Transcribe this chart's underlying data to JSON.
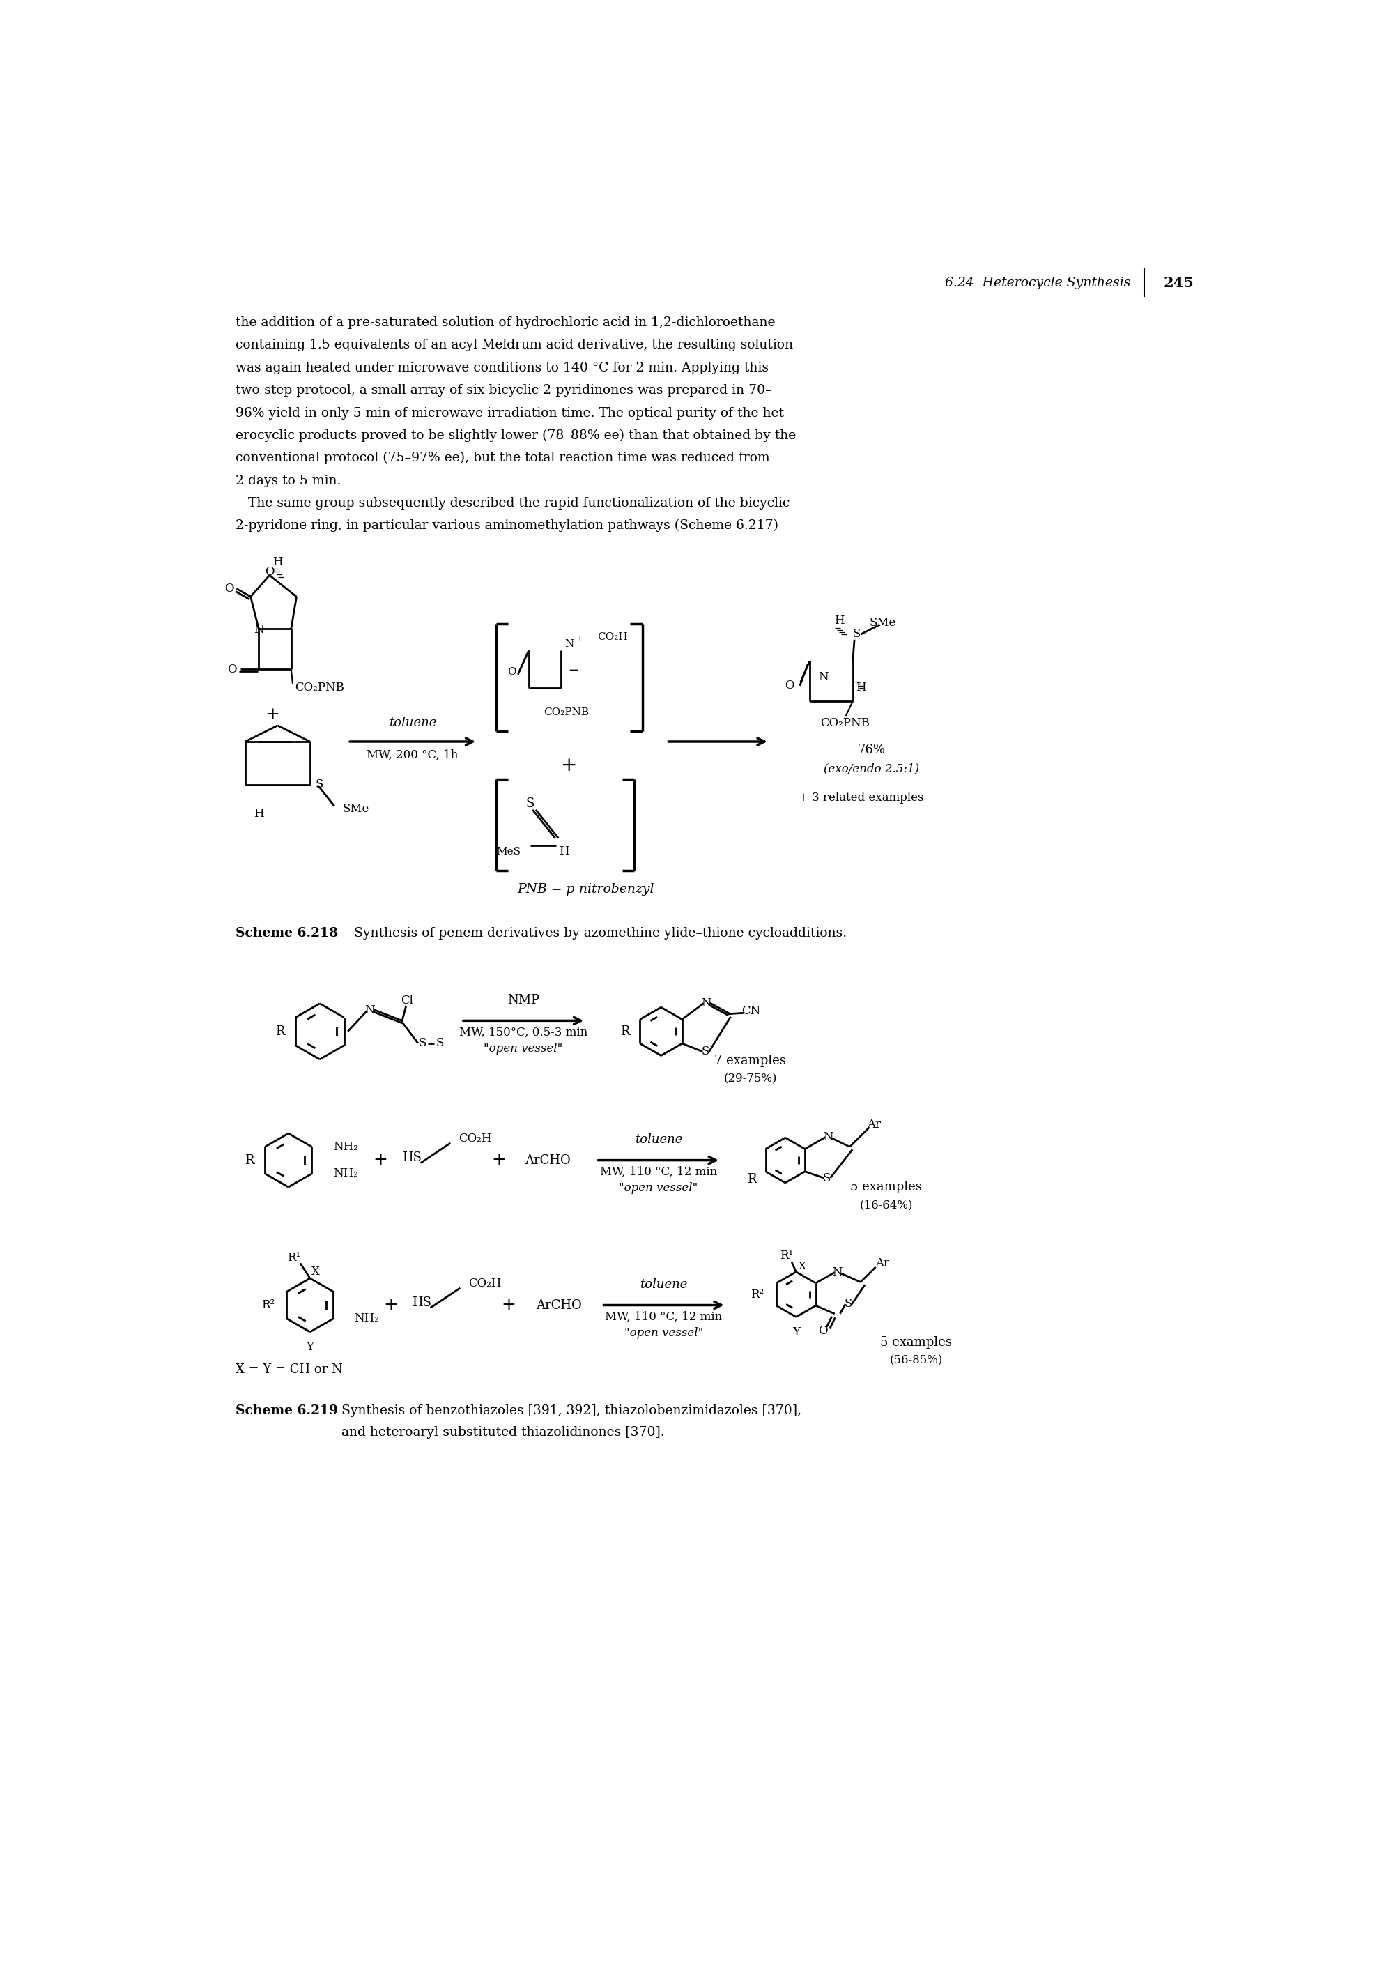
{
  "background_color": "#ffffff",
  "page_header": "6.24  Heterocycle Synthesis",
  "page_number": "245",
  "body_text_lines": [
    "the addition of a pre-saturated solution of hydrochloric acid in 1,2-dichloroethane",
    "containing 1.5 equivalents of an acyl Meldrum acid derivative, the resulting solution",
    "was again heated under microwave conditions to 140 °C for 2 min. Applying this",
    "two-step protocol, a small array of six bicyclic 2-pyridinones was prepared in 70–",
    "96% yield in only 5 min of microwave irradiation time. The optical purity of the het-",
    "erocyclic products proved to be slightly lower (78–88% ee) than that obtained by the",
    "conventional protocol (75–97% ee), but the total reaction time was reduced from",
    "2 days to 5 min.",
    "   The same group subsequently described the rapid functionalization of the bicyclic",
    "2-pyridone ring, in particular various aminomethylation pathways (Scheme 6.217)"
  ],
  "scheme218_label": "Scheme 6.218",
  "scheme218_caption": "   Synthesis of penem derivatives by azomethine ylide–thione cycloadditions.",
  "scheme219_label": "Scheme 6.219",
  "scheme219_caption": "   Synthesis of benzothiazoles [391, 392], thiazolobenzimidazoles [370],\nand heteroaryl-substituted thiazolidinones [370].",
  "pnb_label": "PNB = p-nitrobenzyl"
}
